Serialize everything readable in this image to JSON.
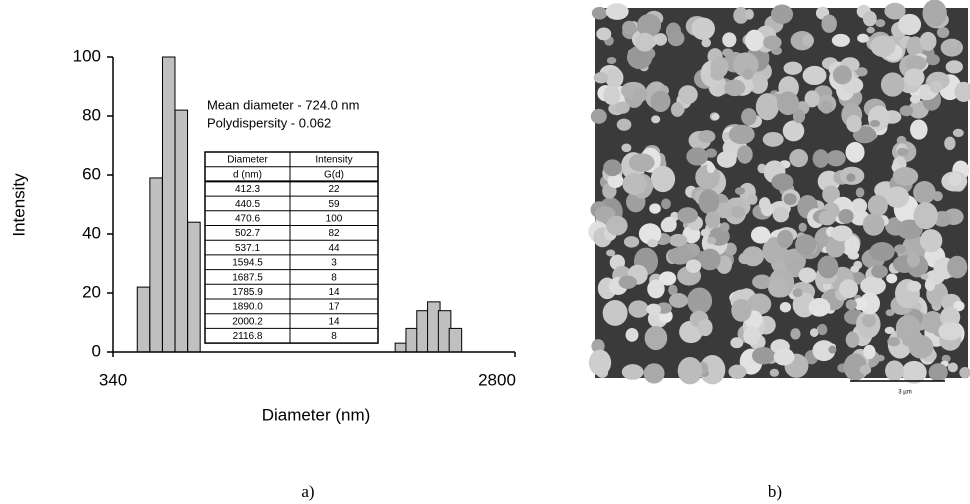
{
  "chart_data": {
    "type": "bar",
    "x": [
      412.3,
      440.5,
      470.6,
      502.7,
      537.1,
      1594.5,
      1687.5,
      1785.9,
      1890.0,
      2000.2,
      2116.8
    ],
    "x_labels": [
      "412.3",
      "440.5",
      "470.6",
      "502.7",
      "537.1",
      "1594.5",
      "1687.5",
      "1785.9",
      "1890.0",
      "2000.2",
      "2116.8"
    ],
    "values": [
      22,
      59,
      100,
      82,
      44,
      3,
      8,
      14,
      17,
      14,
      8
    ],
    "color": "#c0c0c0",
    "xlim": [
      340,
      2800
    ],
    "xticks": [
      340,
      2800
    ],
    "xscale": "log",
    "ylim": [
      0,
      100
    ],
    "yticks": [
      0,
      20,
      40,
      60,
      80,
      100
    ],
    "xlabel": "Diameter (nm)",
    "ylabel": "Intensity",
    "annotations": [
      "Mean diameter - 724.0 nm",
      "Polydispersity - 0.062"
    ],
    "table_headers": [
      [
        "Diameter",
        "Intensity"
      ],
      [
        "d (nm)",
        "G(d)"
      ]
    ]
  },
  "image": {
    "scale_label": "3 µm"
  },
  "panel_labels": [
    "a)",
    "b)"
  ]
}
